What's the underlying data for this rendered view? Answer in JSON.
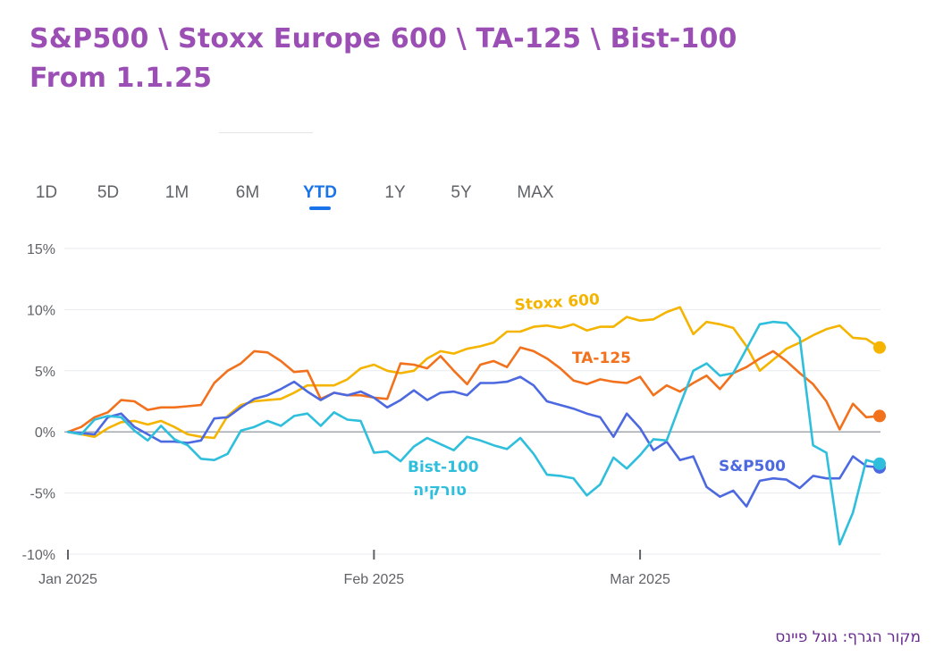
{
  "title": {
    "line1": "S&P500 \\ Stoxx Europe 600 \\ TA-125 \\ Bist-100",
    "line2": "From 1.1.25"
  },
  "range_tabs": [
    {
      "label": "1D",
      "active": false
    },
    {
      "label": "5D",
      "active": false
    },
    {
      "label": "1M",
      "active": false
    },
    {
      "label": "6M",
      "active": false
    },
    {
      "label": "YTD",
      "active": true
    },
    {
      "label": "1Y",
      "active": false
    },
    {
      "label": "5Y",
      "active": false
    },
    {
      "label": "MAX",
      "active": false
    }
  ],
  "source_note": "מקור הגרף: גוגל פיינס",
  "chart_data": {
    "type": "line",
    "title": "",
    "xlabel": "",
    "ylabel": "",
    "ylim": [
      -10,
      15
    ],
    "y_ticks": [
      "15%",
      "10%",
      "5%",
      "0%",
      "-5%",
      "-10%"
    ],
    "x_tick_labels": [
      "Jan 2025",
      "Feb 2025",
      "Mar 2025"
    ],
    "x_tick_positions": [
      0,
      23,
      43
    ],
    "x_max": 61,
    "grid": true,
    "series": [
      {
        "name": "Stoxx 600",
        "color": "#f4b400",
        "label_lines": [
          "Stoxx 600"
        ],
        "values": [
          0,
          -0.2,
          -0.4,
          0.3,
          0.8,
          0.9,
          0.6,
          0.9,
          0.4,
          -0.2,
          -0.4,
          -0.5,
          1.3,
          2.2,
          2.5,
          2.6,
          2.7,
          3.2,
          3.8,
          3.8,
          3.8,
          4.3,
          5.2,
          5.5,
          5.0,
          4.8,
          5.0,
          6.0,
          6.6,
          6.4,
          6.8,
          7.0,
          7.3,
          8.2,
          8.2,
          8.6,
          8.7,
          8.5,
          8.8,
          8.3,
          8.6,
          8.6,
          9.4,
          9.1,
          9.2,
          9.8,
          10.2,
          8.0,
          9.0,
          8.8,
          8.5,
          7.0,
          5.0,
          5.9,
          6.8,
          7.3,
          7.9,
          8.4,
          8.7,
          7.7,
          7.6,
          6.9
        ]
      },
      {
        "name": "TA-125",
        "color": "#f2711c",
        "label_lines": [
          "TA-125"
        ],
        "values": [
          0,
          0.4,
          1.2,
          1.6,
          2.6,
          2.5,
          1.8,
          2.0,
          2.0,
          2.1,
          2.2,
          4.0,
          5.0,
          5.6,
          6.6,
          6.5,
          5.8,
          4.9,
          5.0,
          2.7,
          3.2,
          3.0,
          3.0,
          2.8,
          2.7,
          5.6,
          5.5,
          5.2,
          6.2,
          5.0,
          3.9,
          5.5,
          5.8,
          5.3,
          6.9,
          6.6,
          6.0,
          5.2,
          4.2,
          3.9,
          4.3,
          4.1,
          4.0,
          4.5,
          3.0,
          3.8,
          3.3,
          4.0,
          4.6,
          3.5,
          4.8,
          5.3,
          6.0,
          6.6,
          5.8,
          4.8,
          3.9,
          2.5,
          0.2,
          2.3,
          1.2,
          1.3
        ]
      },
      {
        "name": "S&P500",
        "color": "#4d69e0",
        "label_lines": [
          "S&P500"
        ],
        "values": [
          0,
          -0.1,
          -0.2,
          1.2,
          1.5,
          0.4,
          -0.2,
          -0.8,
          -0.8,
          -0.9,
          -0.7,
          1.1,
          1.2,
          2.0,
          2.7,
          3.0,
          3.5,
          4.1,
          3.3,
          2.6,
          3.2,
          3.0,
          3.3,
          2.8,
          2.0,
          2.6,
          3.4,
          2.6,
          3.2,
          3.3,
          3.0,
          4.0,
          4.0,
          4.1,
          4.5,
          3.8,
          2.5,
          2.2,
          1.9,
          1.5,
          1.2,
          -0.4,
          1.5,
          0.3,
          -1.5,
          -0.8,
          -2.3,
          -2.0,
          -4.5,
          -5.3,
          -4.8,
          -6.1,
          -4.0,
          -3.8,
          -3.9,
          -4.6,
          -3.6,
          -3.8,
          -3.8,
          -2.0,
          -2.8,
          -2.9
        ]
      },
      {
        "name": "Bist-100",
        "color": "#2fbfdc",
        "label_lines": [
          "Bist-100",
          "טורקיה"
        ],
        "values": [
          0,
          -0.2,
          1.0,
          1.3,
          1.2,
          0.1,
          -0.7,
          0.5,
          -0.6,
          -1.1,
          -2.2,
          -2.3,
          -1.8,
          0.1,
          0.4,
          0.9,
          0.5,
          1.3,
          1.5,
          0.5,
          1.6,
          1.0,
          0.9,
          -1.7,
          -1.6,
          -2.4,
          -1.2,
          -0.5,
          -1.0,
          -1.5,
          -0.4,
          -0.7,
          -1.1,
          -1.4,
          -0.5,
          -1.8,
          -3.5,
          -3.6,
          -3.8,
          -5.2,
          -4.3,
          -2.1,
          -3.0,
          -1.9,
          -0.6,
          -0.7,
          2.2,
          5.0,
          5.6,
          4.6,
          4.8,
          6.8,
          8.8,
          9.0,
          8.9,
          7.7,
          -1.1,
          -1.7,
          -9.2,
          -6.6,
          -2.3,
          -2.6
        ]
      }
    ]
  }
}
